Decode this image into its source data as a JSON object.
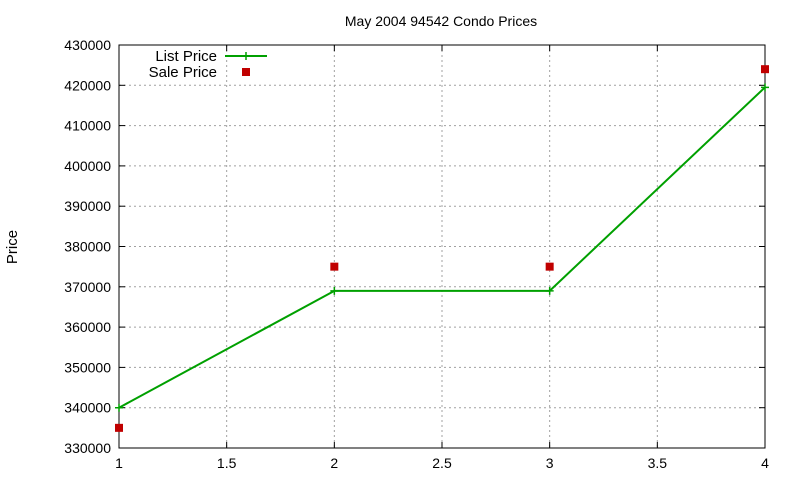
{
  "chart_data": {
    "type": "line",
    "title": "May 2004 94542 Condo Prices",
    "xlabel": "",
    "ylabel": "Price",
    "xlim": [
      1,
      4
    ],
    "ylim": [
      330000,
      430000
    ],
    "xticks": [
      "1",
      "1.5",
      "2",
      "2.5",
      "3",
      "3.5",
      "4"
    ],
    "yticks": [
      "330000",
      "340000",
      "350000",
      "360000",
      "370000",
      "380000",
      "390000",
      "400000",
      "410000",
      "420000",
      "430000"
    ],
    "grid": true,
    "legend_position": "top-left",
    "series": [
      {
        "name": "List Price",
        "style": "line-with-plus-markers",
        "color": "#00a000",
        "x": [
          1,
          2,
          3,
          4
        ],
        "y": [
          340000,
          369000,
          369000,
          419500
        ]
      },
      {
        "name": "Sale Price",
        "style": "square-markers",
        "color": "#c00000",
        "x": [
          1,
          2,
          3,
          4
        ],
        "y": [
          335000,
          375000,
          375000,
          424000
        ]
      }
    ]
  }
}
